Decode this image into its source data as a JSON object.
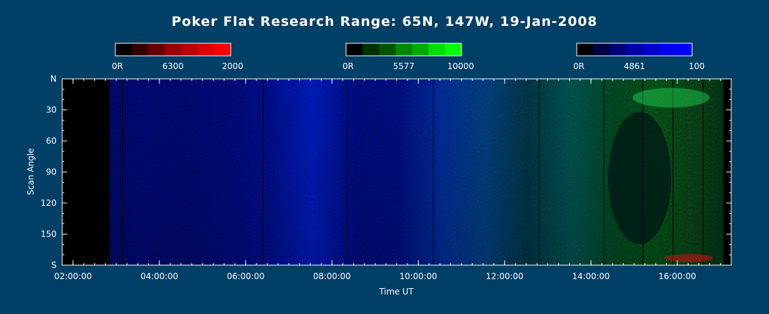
{
  "chart_data": {
    "type": "heatmap",
    "title": "Poker Flat Research Range: 65N, 147W, 19-Jan-2008",
    "xlabel": "Time UT",
    "ylabel": "Scan Angle",
    "x_ticks": [
      "02:00:00",
      "04:00:00",
      "06:00:00",
      "08:00:00",
      "10:00:00",
      "12:00:00",
      "14:00:00",
      "16:00:00"
    ],
    "x_range_hours": [
      1.75,
      17.25
    ],
    "y_ticks": [
      "N",
      "30",
      "60",
      "90",
      "120",
      "150",
      "S"
    ],
    "y_range_deg": [
      0,
      180
    ],
    "colorbars": [
      {
        "name": "6300",
        "min_label": "0R",
        "mid_label": "6300",
        "max_label": "2000",
        "color": "#ff0000",
        "swatches": [
          "#000000",
          "#330000",
          "#660000",
          "#990000",
          "#bb0000",
          "#dd0000",
          "#ff0000"
        ]
      },
      {
        "name": "5577",
        "min_label": "0R",
        "mid_label": "5577",
        "max_label": "10000",
        "color": "#00ff00",
        "swatches": [
          "#000000",
          "#003300",
          "#005500",
          "#008800",
          "#00aa00",
          "#00dd00",
          "#00ff00"
        ]
      },
      {
        "name": "4861",
        "min_label": "0R",
        "mid_label": "4861",
        "max_label": "100",
        "color": "#0000ff",
        "swatches": [
          "#000000",
          "#000044",
          "#000077",
          "#0000aa",
          "#0000cc",
          "#0000ee",
          "#0000ff"
        ]
      }
    ],
    "data_start_hour": 2.85,
    "data_end_hour": 17.05,
    "columns": [
      {
        "t": 2.85,
        "b": 0.45,
        "g": 0.05,
        "r": 0
      },
      {
        "t": 3.5,
        "b": 0.5,
        "g": 0.05,
        "r": 0
      },
      {
        "t": 4.5,
        "b": 0.48,
        "g": 0.05,
        "r": 0
      },
      {
        "t": 5.5,
        "b": 0.52,
        "g": 0.06,
        "r": 0
      },
      {
        "t": 6.5,
        "b": 0.6,
        "g": 0.08,
        "r": 0
      },
      {
        "t": 7.5,
        "b": 0.8,
        "g": 0.15,
        "r": 0
      },
      {
        "t": 8.5,
        "b": 0.55,
        "g": 0.07,
        "r": 0
      },
      {
        "t": 9.5,
        "b": 0.55,
        "g": 0.08,
        "r": 0
      },
      {
        "t": 10.5,
        "b": 0.65,
        "g": 0.25,
        "r": 0
      },
      {
        "t": 11.5,
        "b": 0.55,
        "g": 0.35,
        "r": 0
      },
      {
        "t": 12.5,
        "b": 0.3,
        "g": 0.3,
        "r": 0
      },
      {
        "t": 13.5,
        "b": 0.35,
        "g": 0.45,
        "r": 0
      },
      {
        "t": 14.5,
        "b": 0.15,
        "g": 0.4,
        "r": 0
      },
      {
        "t": 15.5,
        "b": 0.1,
        "g": 0.45,
        "r": 0.1
      },
      {
        "t": 16.5,
        "b": 0.1,
        "g": 0.35,
        "r": 0.2
      },
      {
        "t": 17.05,
        "b": 0.1,
        "g": 0.3,
        "r": 0
      }
    ],
    "dark_lines_hours": [
      3.15,
      6.4,
      8.35,
      10.35,
      12.8,
      14.3,
      15.2,
      15.9,
      16.6
    ]
  }
}
